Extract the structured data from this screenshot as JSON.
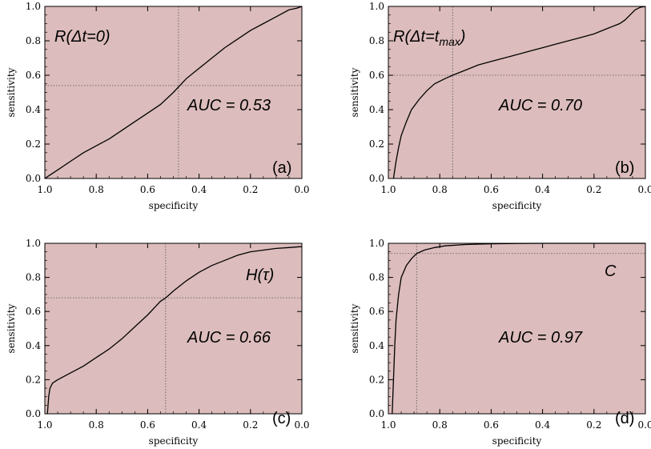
{
  "chart_data": [
    {
      "type": "line",
      "panel": "(a)",
      "title_parts": [
        {
          "t": "R(Δt=0)",
          "sub": false
        }
      ],
      "auc_text": "AUC = 0.53",
      "xlabel": "specificity",
      "ylabel": "sensitivity",
      "xlim": [
        1.0,
        0.0
      ],
      "ylim": [
        0.0,
        1.0
      ],
      "x_reversed": true,
      "x_ticks": [
        "1.0",
        "0.8",
        "0.6",
        "0.4",
        "0.2",
        "0.0"
      ],
      "y_ticks": [
        "0.0",
        "0.2",
        "0.4",
        "0.6",
        "0.8",
        "1.0"
      ],
      "background": "#dcbcbc",
      "threshold": {
        "x": 0.48,
        "y": 0.54
      },
      "series": [
        {
          "x": [
            1.0,
            0.98,
            0.95,
            0.9,
            0.85,
            0.8,
            0.75,
            0.7,
            0.65,
            0.6,
            0.55,
            0.5,
            0.45,
            0.4,
            0.35,
            0.3,
            0.25,
            0.2,
            0.15,
            0.1,
            0.05,
            0.02,
            0.0
          ],
          "y": [
            0.0,
            0.02,
            0.05,
            0.1,
            0.15,
            0.19,
            0.23,
            0.28,
            0.33,
            0.38,
            0.43,
            0.5,
            0.58,
            0.64,
            0.7,
            0.76,
            0.81,
            0.86,
            0.9,
            0.94,
            0.98,
            0.99,
            1.0
          ]
        }
      ]
    },
    {
      "type": "line",
      "panel": "(b)",
      "title_parts": [
        {
          "t": "R(Δt=t",
          "sub": false
        },
        {
          "t": "max",
          "sub": true
        },
        {
          "t": ")",
          "sub": false
        }
      ],
      "auc_text": "AUC = 0.70",
      "xlabel": "specificity",
      "ylabel": "sensitivity",
      "xlim": [
        1.0,
        0.0
      ],
      "ylim": [
        0.0,
        1.0
      ],
      "x_reversed": true,
      "x_ticks": [
        "1.0",
        "0.8",
        "0.6",
        "0.4",
        "0.2",
        "0.0"
      ],
      "y_ticks": [
        "0.0",
        "0.2",
        "0.4",
        "0.6",
        "0.8",
        "1.0"
      ],
      "background": "#dcbcbc",
      "threshold": {
        "x": 0.75,
        "y": 0.6
      },
      "series": [
        {
          "x": [
            0.98,
            0.97,
            0.96,
            0.95,
            0.93,
            0.91,
            0.88,
            0.85,
            0.82,
            0.78,
            0.75,
            0.7,
            0.65,
            0.6,
            0.55,
            0.5,
            0.45,
            0.4,
            0.35,
            0.3,
            0.25,
            0.2,
            0.15,
            0.1,
            0.08,
            0.06,
            0.04,
            0.02,
            0.0
          ],
          "y": [
            0.0,
            0.1,
            0.18,
            0.25,
            0.33,
            0.4,
            0.46,
            0.51,
            0.55,
            0.58,
            0.6,
            0.63,
            0.66,
            0.68,
            0.7,
            0.72,
            0.74,
            0.76,
            0.78,
            0.8,
            0.82,
            0.84,
            0.87,
            0.9,
            0.92,
            0.95,
            0.98,
            0.995,
            1.0
          ]
        }
      ]
    },
    {
      "type": "line",
      "panel": "(c)",
      "title_parts": [
        {
          "t": "H(τ)",
          "sub": false
        }
      ],
      "auc_text": "AUC = 0.66",
      "xlabel": "specificity",
      "ylabel": "sensitivity",
      "xlim": [
        1.0,
        0.0
      ],
      "ylim": [
        0.0,
        1.0
      ],
      "x_reversed": true,
      "x_ticks": [
        "1.0",
        "0.8",
        "0.6",
        "0.4",
        "0.2",
        "0.0"
      ],
      "y_ticks": [
        "0.0",
        "0.2",
        "0.4",
        "0.6",
        "0.8",
        "1.0"
      ],
      "background": "#dcbcbc",
      "threshold": {
        "x": 0.53,
        "y": 0.68
      },
      "series": [
        {
          "x": [
            0.99,
            0.985,
            0.98,
            0.97,
            0.95,
            0.9,
            0.85,
            0.8,
            0.75,
            0.7,
            0.65,
            0.6,
            0.55,
            0.53,
            0.5,
            0.45,
            0.4,
            0.35,
            0.3,
            0.25,
            0.2,
            0.15,
            0.1,
            0.05,
            0.01,
            0.0
          ],
          "y": [
            0.0,
            0.1,
            0.15,
            0.18,
            0.2,
            0.24,
            0.28,
            0.33,
            0.38,
            0.44,
            0.51,
            0.58,
            0.66,
            0.68,
            0.72,
            0.78,
            0.83,
            0.87,
            0.9,
            0.93,
            0.95,
            0.96,
            0.97,
            0.975,
            0.98,
            0.98
          ]
        }
      ]
    },
    {
      "type": "line",
      "panel": "(d)",
      "title_parts": [
        {
          "t": "C",
          "sub": false
        }
      ],
      "auc_text": "AUC = 0.97",
      "xlabel": "specificity",
      "ylabel": "sensitivity",
      "xlim": [
        1.0,
        0.0
      ],
      "ylim": [
        0.0,
        1.0
      ],
      "x_reversed": true,
      "x_ticks": [
        "1.0",
        "0.8",
        "0.6",
        "0.4",
        "0.2",
        "0.0"
      ],
      "y_ticks": [
        "0.0",
        "0.2",
        "0.4",
        "0.6",
        "0.8",
        "1.0"
      ],
      "background": "#dcbcbc",
      "threshold": {
        "x": 0.89,
        "y": 0.94
      },
      "series": [
        {
          "x": [
            0.985,
            0.98,
            0.975,
            0.97,
            0.96,
            0.95,
            0.93,
            0.91,
            0.89,
            0.86,
            0.82,
            0.78,
            0.7,
            0.6,
            0.5,
            0.4,
            0.2,
            0.0
          ],
          "y": [
            0.0,
            0.2,
            0.4,
            0.55,
            0.7,
            0.8,
            0.87,
            0.91,
            0.94,
            0.96,
            0.975,
            0.985,
            0.993,
            0.997,
            0.999,
            1.0,
            1.0,
            1.0
          ]
        }
      ]
    }
  ]
}
